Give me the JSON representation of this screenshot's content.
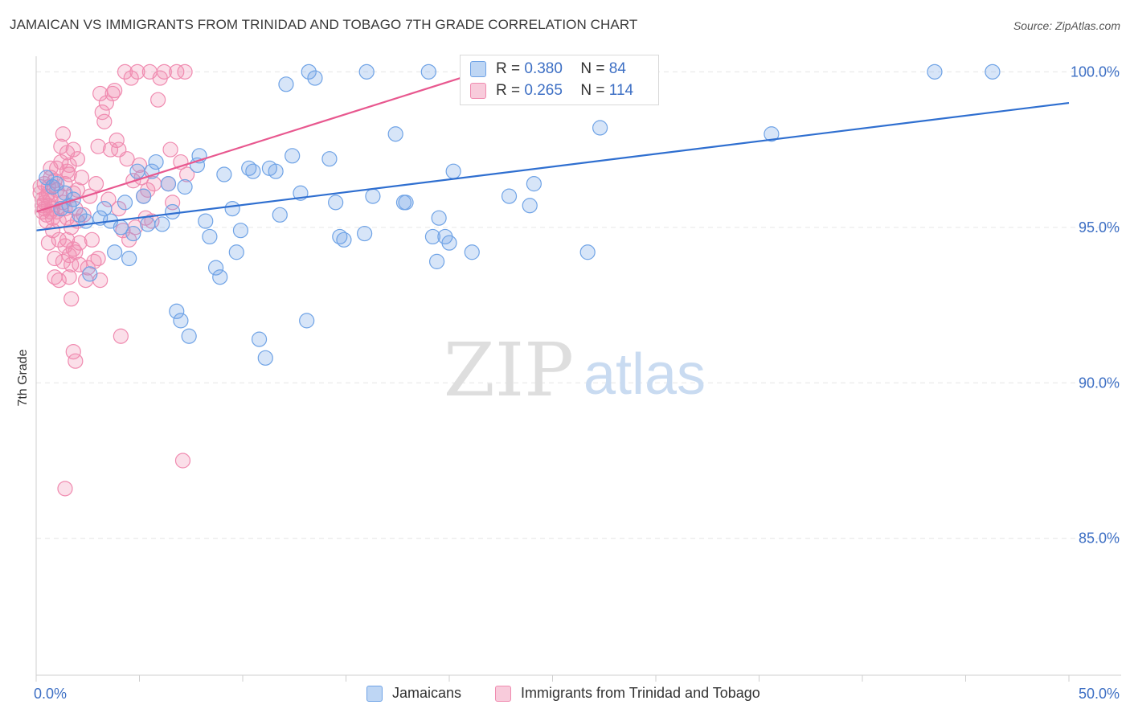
{
  "header": {
    "title": "JAMAICAN VS IMMIGRANTS FROM TRINIDAD AND TOBAGO 7TH GRADE CORRELATION CHART",
    "source": "Source: ZipAtlas.com"
  },
  "watermark": {
    "zip": "ZIP",
    "atlas": "atlas"
  },
  "legend": {
    "r_label": "R =",
    "n_label": "N =",
    "rows": [
      {
        "r": "0.380",
        "n": "84",
        "color": "#6fa3e6"
      },
      {
        "r": "0.265",
        "n": "114",
        "color": "#f08bb0"
      }
    ]
  },
  "bottom_legend": [
    {
      "label": "Jamaicans",
      "color": "#6fa3e6"
    },
    {
      "label": "Immigrants from Trinidad and Tobago",
      "color": "#f08bb0"
    }
  ],
  "chart_data": {
    "type": "scatter",
    "title": "JAMAICAN VS IMMIGRANTS FROM TRINIDAD AND TOBAGO 7TH GRADE CORRELATION CHART",
    "xlabel": "",
    "ylabel": "7th Grade",
    "xlim": [
      0,
      50
    ],
    "ylim": [
      80.6,
      100.5
    ],
    "x_tick_labels": [
      "0.0%",
      "50.0%"
    ],
    "y_ticks": [
      85,
      90,
      95,
      100
    ],
    "y_tick_labels": [
      "85.0%",
      "90.0%",
      "95.0%",
      "100.0%"
    ],
    "grid": true,
    "legend_position": "top-center",
    "series": [
      {
        "name": "Jamaicans",
        "color": "#6fa3e6",
        "line_color": "#2f6fd0",
        "trend": {
          "x": [
            0,
            50
          ],
          "y": [
            94.9,
            99.0
          ]
        },
        "points": [
          [
            0.5,
            96.6
          ],
          [
            0.8,
            96.3
          ],
          [
            1.0,
            96.4
          ],
          [
            1.2,
            95.6
          ],
          [
            1.4,
            96.1
          ],
          [
            1.6,
            95.7
          ],
          [
            1.8,
            95.9
          ],
          [
            2.1,
            95.4
          ],
          [
            2.4,
            95.2
          ],
          [
            2.6,
            93.5
          ],
          [
            3.1,
            95.3
          ],
          [
            3.3,
            95.6
          ],
          [
            3.6,
            95.2
          ],
          [
            3.8,
            94.2
          ],
          [
            4.1,
            95.0
          ],
          [
            4.3,
            95.8
          ],
          [
            4.5,
            94.0
          ],
          [
            4.7,
            94.8
          ],
          [
            4.9,
            96.8
          ],
          [
            5.2,
            96.0
          ],
          [
            5.4,
            95.1
          ],
          [
            5.6,
            96.8
          ],
          [
            5.8,
            97.1
          ],
          [
            6.1,
            95.1
          ],
          [
            6.4,
            96.4
          ],
          [
            6.6,
            95.5
          ],
          [
            6.8,
            92.3
          ],
          [
            7.0,
            92.0
          ],
          [
            7.2,
            96.3
          ],
          [
            7.4,
            91.5
          ],
          [
            7.8,
            97.0
          ],
          [
            7.9,
            97.3
          ],
          [
            8.2,
            95.2
          ],
          [
            8.4,
            94.7
          ],
          [
            8.7,
            93.7
          ],
          [
            8.9,
            93.4
          ],
          [
            9.1,
            96.7
          ],
          [
            9.5,
            95.6
          ],
          [
            9.7,
            94.2
          ],
          [
            9.9,
            94.9
          ],
          [
            10.3,
            96.9
          ],
          [
            10.5,
            96.8
          ],
          [
            10.8,
            91.4
          ],
          [
            11.1,
            90.8
          ],
          [
            11.3,
            96.9
          ],
          [
            11.6,
            96.8
          ],
          [
            11.8,
            95.4
          ],
          [
            12.1,
            99.6
          ],
          [
            12.4,
            97.3
          ],
          [
            12.8,
            96.1
          ],
          [
            13.1,
            92.0
          ],
          [
            13.2,
            100.0
          ],
          [
            13.5,
            99.8
          ],
          [
            14.2,
            97.2
          ],
          [
            14.5,
            95.8
          ],
          [
            14.7,
            94.7
          ],
          [
            14.9,
            94.6
          ],
          [
            15.9,
            94.8
          ],
          [
            16.0,
            100.0
          ],
          [
            16.3,
            96.0
          ],
          [
            17.4,
            98.0
          ],
          [
            17.8,
            95.8
          ],
          [
            17.9,
            95.8
          ],
          [
            19.0,
            100.0
          ],
          [
            19.2,
            94.7
          ],
          [
            19.4,
            93.9
          ],
          [
            19.5,
            95.3
          ],
          [
            19.8,
            94.7
          ],
          [
            20.0,
            94.5
          ],
          [
            20.2,
            96.8
          ],
          [
            21.1,
            94.2
          ],
          [
            22.9,
            96.0
          ],
          [
            23.9,
            95.7
          ],
          [
            24.1,
            96.4
          ],
          [
            26.7,
            94.2
          ],
          [
            27.2,
            100.0
          ],
          [
            27.3,
            98.2
          ],
          [
            35.6,
            98.0
          ],
          [
            43.5,
            100.0
          ],
          [
            46.3,
            100.0
          ]
        ]
      },
      {
        "name": "Immigrants from Trinidad and Tobago",
        "color": "#f08bb0",
        "line_color": "#e8588f",
        "trend": {
          "x": [
            0,
            21.5
          ],
          "y": [
            95.5,
            100.0
          ]
        },
        "points": [
          [
            0.2,
            96.3
          ],
          [
            0.2,
            96.1
          ],
          [
            0.3,
            95.9
          ],
          [
            0.3,
            95.7
          ],
          [
            0.3,
            95.5
          ],
          [
            0.4,
            96.4
          ],
          [
            0.4,
            95.8
          ],
          [
            0.4,
            95.6
          ],
          [
            0.5,
            96.0
          ],
          [
            0.5,
            95.4
          ],
          [
            0.5,
            95.2
          ],
          [
            0.6,
            96.1
          ],
          [
            0.6,
            95.7
          ],
          [
            0.6,
            94.5
          ],
          [
            0.7,
            96.9
          ],
          [
            0.7,
            96.6
          ],
          [
            0.7,
            95.9
          ],
          [
            0.8,
            95.6
          ],
          [
            0.8,
            95.3
          ],
          [
            0.8,
            94.9
          ],
          [
            0.9,
            96.5
          ],
          [
            0.9,
            94.0
          ],
          [
            0.9,
            93.4
          ],
          [
            1.0,
            96.9
          ],
          [
            1.0,
            96.2
          ],
          [
            1.0,
            95.5
          ],
          [
            1.1,
            95.2
          ],
          [
            1.1,
            94.6
          ],
          [
            1.1,
            93.3
          ],
          [
            1.2,
            97.6
          ],
          [
            1.2,
            97.1
          ],
          [
            1.2,
            96.0
          ],
          [
            1.3,
            95.8
          ],
          [
            1.3,
            93.9
          ],
          [
            1.3,
            98.0
          ],
          [
            1.4,
            96.4
          ],
          [
            1.4,
            95.6
          ],
          [
            1.4,
            94.4
          ],
          [
            1.5,
            97.4
          ],
          [
            1.5,
            95.3
          ],
          [
            1.5,
            94.6
          ],
          [
            1.6,
            97.0
          ],
          [
            1.6,
            96.7
          ],
          [
            1.6,
            94.1
          ],
          [
            1.6,
            93.4
          ],
          [
            1.7,
            95.0
          ],
          [
            1.7,
            93.8
          ],
          [
            1.7,
            92.7
          ],
          [
            1.8,
            97.5
          ],
          [
            1.8,
            96.1
          ],
          [
            1.8,
            94.3
          ],
          [
            1.8,
            91.0
          ],
          [
            1.9,
            95.6
          ],
          [
            1.9,
            94.2
          ],
          [
            1.9,
            90.7
          ],
          [
            2.0,
            97.2
          ],
          [
            2.0,
            96.2
          ],
          [
            2.0,
            95.2
          ],
          [
            2.1,
            94.5
          ],
          [
            2.1,
            93.8
          ],
          [
            2.2,
            96.6
          ],
          [
            2.3,
            95.4
          ],
          [
            2.4,
            93.3
          ],
          [
            2.5,
            93.7
          ],
          [
            2.6,
            96.0
          ],
          [
            2.7,
            94.6
          ],
          [
            2.8,
            93.9
          ],
          [
            2.9,
            96.4
          ],
          [
            3.0,
            97.6
          ],
          [
            3.0,
            94.0
          ],
          [
            3.1,
            93.3
          ],
          [
            3.1,
            99.3
          ],
          [
            3.2,
            98.7
          ],
          [
            3.3,
            98.4
          ],
          [
            3.4,
            99.0
          ],
          [
            3.5,
            95.9
          ],
          [
            3.6,
            97.5
          ],
          [
            3.7,
            99.3
          ],
          [
            3.8,
            99.4
          ],
          [
            3.9,
            97.8
          ],
          [
            4.0,
            97.5
          ],
          [
            4.0,
            95.6
          ],
          [
            4.1,
            91.5
          ],
          [
            4.2,
            94.9
          ],
          [
            4.3,
            100.0
          ],
          [
            4.4,
            97.2
          ],
          [
            4.5,
            94.6
          ],
          [
            4.6,
            99.8
          ],
          [
            4.7,
            96.5
          ],
          [
            4.8,
            95.0
          ],
          [
            4.9,
            100.0
          ],
          [
            5.0,
            97.0
          ],
          [
            5.1,
            96.6
          ],
          [
            5.2,
            96.0
          ],
          [
            5.3,
            95.3
          ],
          [
            5.4,
            96.2
          ],
          [
            5.5,
            100.0
          ],
          [
            5.6,
            95.2
          ],
          [
            5.7,
            96.4
          ],
          [
            5.9,
            99.1
          ],
          [
            6.0,
            99.8
          ],
          [
            6.2,
            100.0
          ],
          [
            6.4,
            96.4
          ],
          [
            6.5,
            97.5
          ],
          [
            6.6,
            95.8
          ],
          [
            6.8,
            100.0
          ],
          [
            7.0,
            97.1
          ],
          [
            7.1,
            87.5
          ],
          [
            7.2,
            100.0
          ],
          [
            7.3,
            96.7
          ],
          [
            1.4,
            86.6
          ],
          [
            0.6,
            96.3
          ],
          [
            0.7,
            95.5
          ],
          [
            1.5,
            96.8
          ]
        ]
      }
    ]
  }
}
